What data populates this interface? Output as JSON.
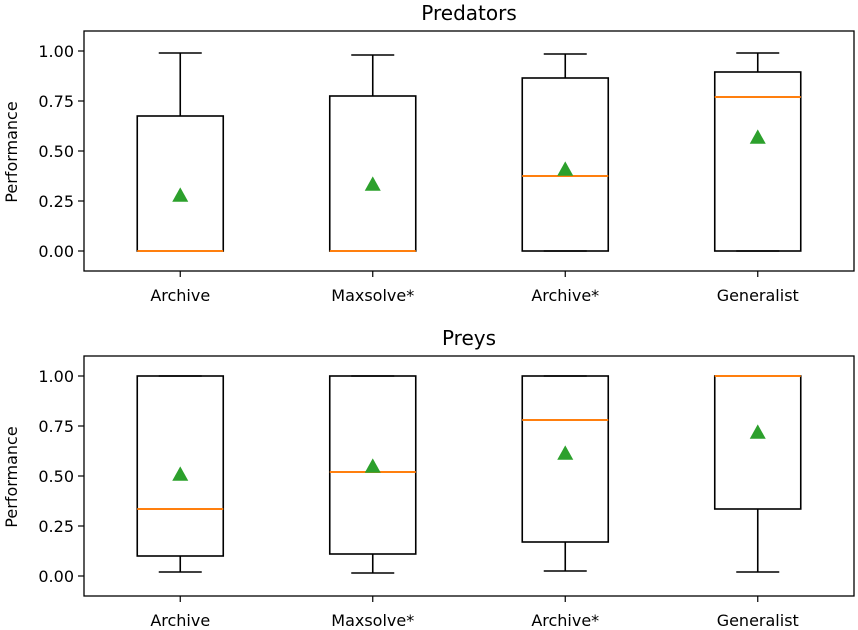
{
  "chart_data": [
    {
      "type": "box",
      "title": "Predators",
      "ylabel": "Performance",
      "xlabel": "",
      "ylim": [
        -0.1,
        1.1
      ],
      "yticks": [
        "0.00",
        "0.25",
        "0.50",
        "0.75",
        "1.00"
      ],
      "categories": [
        "Archive",
        "Maxsolve*",
        "Archive*",
        "Generalist"
      ],
      "boxes": [
        {
          "category": "Archive",
          "whisker_low": 0.0,
          "q1": 0.0,
          "median": 0.0,
          "q3": 0.675,
          "whisker_high": 0.99,
          "mean": 0.28
        },
        {
          "category": "Maxsolve*",
          "whisker_low": 0.0,
          "q1": 0.0,
          "median": 0.0,
          "q3": 0.775,
          "whisker_high": 0.98,
          "mean": 0.335
        },
        {
          "category": "Archive*",
          "whisker_low": 0.0,
          "q1": 0.0,
          "median": 0.375,
          "q3": 0.865,
          "whisker_high": 0.985,
          "mean": 0.41
        },
        {
          "category": "Generalist",
          "whisker_low": 0.0,
          "q1": 0.0,
          "median": 0.77,
          "q3": 0.895,
          "whisker_high": 0.99,
          "mean": 0.57
        }
      ]
    },
    {
      "type": "box",
      "title": "Preys",
      "ylabel": "Performance",
      "xlabel": "",
      "ylim": [
        -0.1,
        1.1
      ],
      "yticks": [
        "0.00",
        "0.25",
        "0.50",
        "0.75",
        "1.00"
      ],
      "categories": [
        "Archive",
        "Maxsolve*",
        "Archive*",
        "Generalist"
      ],
      "boxes": [
        {
          "category": "Archive",
          "whisker_low": 0.02,
          "q1": 0.1,
          "median": 0.335,
          "q3": 1.0,
          "whisker_high": 1.0,
          "mean": 0.51
        },
        {
          "category": "Maxsolve*",
          "whisker_low": 0.015,
          "q1": 0.11,
          "median": 0.52,
          "q3": 1.0,
          "whisker_high": 1.0,
          "mean": 0.55
        },
        {
          "category": "Archive*",
          "whisker_low": 0.025,
          "q1": 0.17,
          "median": 0.78,
          "q3": 1.0,
          "whisker_high": 1.0,
          "mean": 0.615
        },
        {
          "category": "Generalist",
          "whisker_low": 0.02,
          "q1": 0.335,
          "median": 1.0,
          "q3": 1.0,
          "whisker_high": 1.0,
          "mean": 0.72
        }
      ]
    }
  ],
  "colors": {
    "median": "#ff7f0e",
    "mean": "#2ca02c",
    "box": "#000000"
  }
}
